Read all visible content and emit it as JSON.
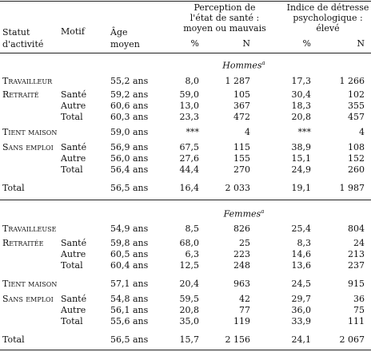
{
  "header": {
    "statut": "Statut\nd'activité",
    "motif": "Motif",
    "age": "Âge\nmoyen",
    "perception": "Perception de\nl'état de santé :\nmoyen ou mauvais",
    "detresse": "Indice de détresse\npsychologique :\nélevé",
    "sante_pct": "%",
    "sante_n": "N",
    "detresse_pct": "%",
    "detresse_n": "N"
  },
  "sections": [
    {
      "title": "Hommes",
      "note": "a",
      "rows": [
        {
          "statut": "Travailleur",
          "age": "55,2 ans",
          "sante_pct": "8,0",
          "sante_n": "1 287",
          "detresse_pct": "17,3",
          "detresse_n": "1 266"
        },
        {
          "statut": "Retraité",
          "motif": "Santé",
          "age": "59,2 ans",
          "sante_pct": "59,0",
          "sante_n": "105",
          "detresse_pct": "30,4",
          "detresse_n": "102"
        },
        {
          "motif": "Autre",
          "age": "60,6 ans",
          "sante_pct": "13,0",
          "sante_n": "367",
          "detresse_pct": "18,3",
          "detresse_n": "355"
        },
        {
          "motif": "Total",
          "age": "60,3 ans",
          "sante_pct": "23,3",
          "sante_n": "472",
          "detresse_pct": "20,8",
          "detresse_n": "457"
        },
        {
          "statut": "Tient maison",
          "age": "59,0 ans",
          "sante_pct": "***",
          "sante_n": "4",
          "detresse_pct": "***",
          "detresse_n": "4"
        },
        {
          "statut": "Sans emploi",
          "motif": "Santé",
          "age": "56,9 ans",
          "sante_pct": "67,5",
          "sante_n": "115",
          "detresse_pct": "38,9",
          "detresse_n": "108"
        },
        {
          "motif": "Autre",
          "age": "56,0 ans",
          "sante_pct": "27,6",
          "sante_n": "155",
          "detresse_pct": "15,1",
          "detresse_n": "152"
        },
        {
          "motif": "Total",
          "age": "56,4 ans",
          "sante_pct": "44,4",
          "sante_n": "270",
          "detresse_pct": "24,9",
          "detresse_n": "260"
        },
        {
          "statut": "Total",
          "age": "56,5 ans",
          "sante_pct": "16,4",
          "sante_n": "2 033",
          "detresse_pct": "19,1",
          "detresse_n": "1 987"
        }
      ]
    },
    {
      "title": "Femmes",
      "note": "a",
      "rows": [
        {
          "statut": "Travailleuse",
          "age": "54,9 ans",
          "sante_pct": "8,5",
          "sante_n": "826",
          "detresse_pct": "25,4",
          "detresse_n": "804"
        },
        {
          "statut": "Retraitée",
          "motif": "Santé",
          "age": "59,8 ans",
          "sante_pct": "68,0",
          "sante_n": "25",
          "detresse_pct": "8,3",
          "detresse_n": "24"
        },
        {
          "motif": "Autre",
          "age": "60,5 ans",
          "sante_pct": "6,3",
          "sante_n": "223",
          "detresse_pct": "14,6",
          "detresse_n": "213"
        },
        {
          "motif": "Total",
          "age": "60,4 ans",
          "sante_pct": "12,5",
          "sante_n": "248",
          "detresse_pct": "13,6",
          "detresse_n": "237"
        },
        {
          "statut": "Tient maison",
          "age": "57,1 ans",
          "sante_pct": "20,4",
          "sante_n": "963",
          "detresse_pct": "24,5",
          "detresse_n": "915"
        },
        {
          "statut": "Sans emploi",
          "motif": "Santé",
          "age": "54,8 ans",
          "sante_pct": "59,5",
          "sante_n": "42",
          "detresse_pct": "29,7",
          "detresse_n": "36"
        },
        {
          "motif": "Autre",
          "age": "56,1 ans",
          "sante_pct": "20,8",
          "sante_n": "77",
          "detresse_pct": "36,0",
          "detresse_n": "75"
        },
        {
          "motif": "Total",
          "age": "55,6 ans",
          "sante_pct": "35,0",
          "sante_n": "119",
          "detresse_pct": "33,9",
          "detresse_n": "111"
        },
        {
          "statut": "Total",
          "age": "56,5 ans",
          "sante_pct": "15,7",
          "sante_n": "2 156",
          "detresse_pct": "24,1",
          "detresse_n": "2 067"
        }
      ]
    }
  ]
}
